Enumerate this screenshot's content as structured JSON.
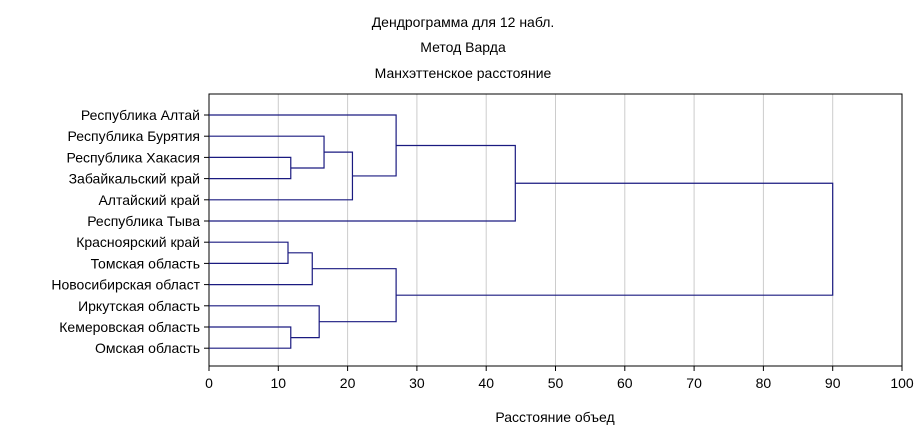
{
  "chart_data": {
    "type": "dendrogram",
    "title": "Дендрограмма для 12 набл.",
    "subtitle_lines": [
      "Метод Варда",
      "Манхэттенское расстояние"
    ],
    "xlabel": "Расстояние объед",
    "xlim": [
      0,
      100
    ],
    "xticks": [
      "0",
      "10",
      "20",
      "30",
      "40",
      "50",
      "60",
      "70",
      "80",
      "90",
      "100"
    ],
    "grid": true,
    "colors": {
      "lines": "#1a1a80",
      "grid": "#cccccc",
      "frame": "#000000"
    },
    "leaves": [
      "Республика Алтай",
      "Республика Бурятия",
      "Республика Хакасия",
      "Забайкальский край",
      "Алтайский край",
      "Республика Тыва",
      "Красноярский край",
      "Томская область",
      "Новосибирская област",
      "Иркутская область",
      "Кемеровская область",
      "Омская область"
    ],
    "merges": [
      {
        "left": "Республика Хакасия",
        "right": "Забайкальский край",
        "distance": 11.8
      },
      {
        "left": "Красноярский край",
        "right": "Томская область",
        "distance": 11.4
      },
      {
        "left": "Кемеровская область",
        "right": "Омская область",
        "distance": 11.8
      },
      {
        "left": "Республика Бурятия",
        "right": "C1",
        "distance": 16.6
      },
      {
        "left": "C4",
        "right": "Алтайский край",
        "distance": 20.7
      },
      {
        "left": "Республика Алтай",
        "right": "C5",
        "distance": 27.0
      },
      {
        "left": "C6",
        "right": "Республика Тыва",
        "distance": 44.2
      },
      {
        "left": "C2",
        "right": "Новосибирская област",
        "distance": 14.9
      },
      {
        "left": "Иркутская область",
        "right": "C3",
        "distance": 15.9
      },
      {
        "left": "C8",
        "right": "C9",
        "distance": 27.0
      },
      {
        "left": "C7",
        "right": "C10",
        "distance": 90.0
      }
    ]
  }
}
